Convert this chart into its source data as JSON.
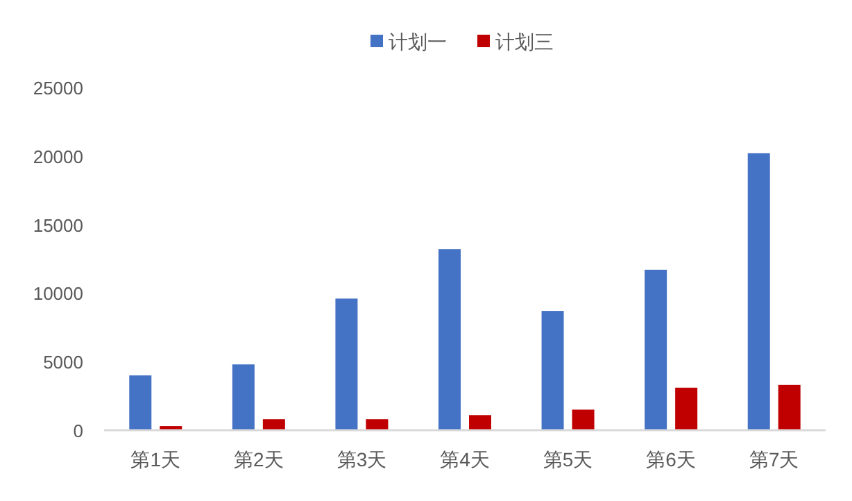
{
  "chart_data": {
    "type": "bar",
    "categories": [
      "第1天",
      "第2天",
      "第3天",
      "第4天",
      "第5天",
      "第6天",
      "第7天"
    ],
    "series": [
      {
        "name": "计划一",
        "color": "#4472c4",
        "values": [
          4000,
          4800,
          9600,
          13200,
          8700,
          11700,
          20200
        ]
      },
      {
        "name": "计划三",
        "color": "#c00000",
        "values": [
          300,
          800,
          800,
          1100,
          1500,
          3100,
          3300
        ]
      }
    ],
    "ylim": [
      0,
      25000
    ],
    "yticks": [
      0,
      5000,
      10000,
      15000,
      20000,
      25000
    ],
    "grid": false,
    "legend": "top"
  }
}
